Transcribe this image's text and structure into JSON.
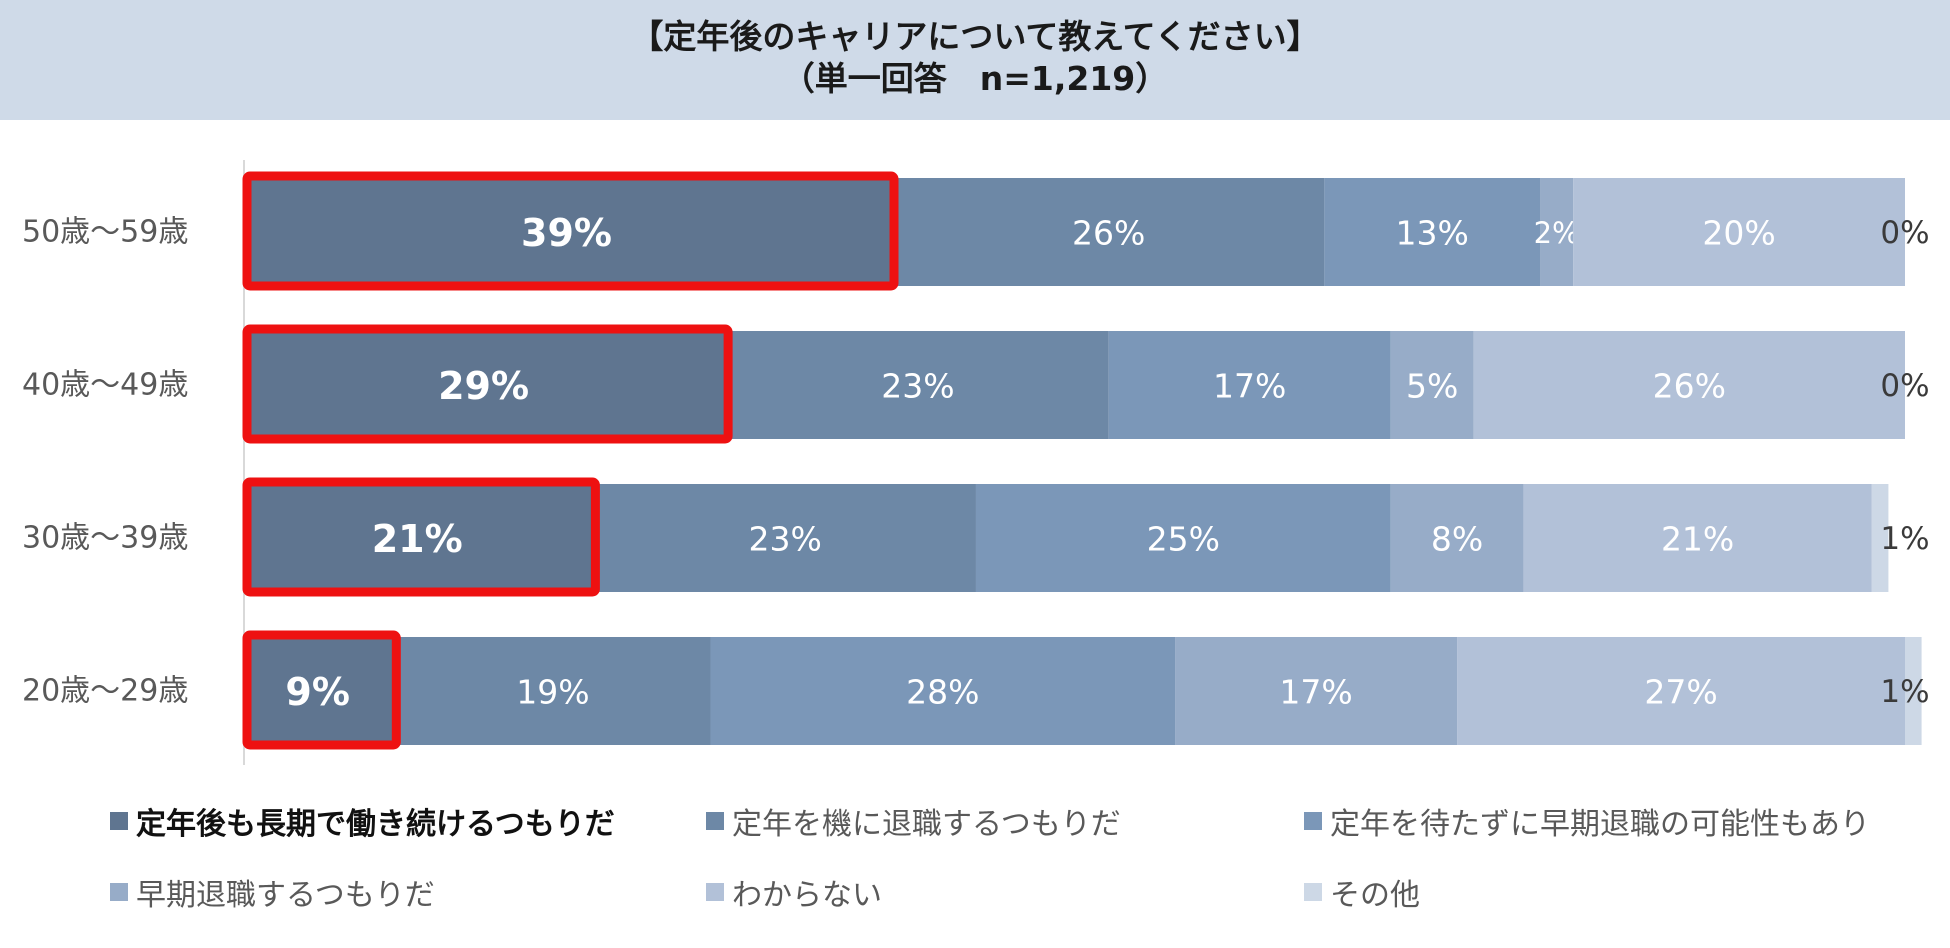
{
  "title": {
    "line1": "【定年後のキャリアについて教えてください】",
    "line2": "（単一回答　n=1,219）"
  },
  "chart_data": {
    "type": "bar",
    "orientation": "horizontal",
    "stacked": true,
    "normalized": true,
    "categories": [
      "50歳～59歳",
      "40歳～49歳",
      "30歳～39歳",
      "20歳～29歳"
    ],
    "series": [
      {
        "name": "定年後も長期で働き続けるつもりだ",
        "values": [
          39,
          29,
          21,
          9
        ],
        "color": "#5f7590",
        "highlight": true
      },
      {
        "name": "定年を機に退職するつもりだ",
        "values": [
          26,
          23,
          23,
          19
        ],
        "color": "#6d88a6"
      },
      {
        "name": "定年を待たずに早期退職の可能性もあり",
        "values": [
          13,
          17,
          25,
          28
        ],
        "color": "#7b97b8"
      },
      {
        "name": "早期退職するつもりだ",
        "values": [
          2,
          5,
          8,
          17
        ],
        "color": "#97acc8"
      },
      {
        "name": "わからない",
        "values": [
          20,
          26,
          21,
          27
        ],
        "color": "#b2c1d8"
      },
      {
        "name": "その他",
        "values": [
          0,
          0,
          1,
          1
        ],
        "color": "#cdd8e6"
      }
    ],
    "value_labels": [
      [
        "39%",
        "26%",
        "13%",
        "2%",
        "20%",
        "0%"
      ],
      [
        "29%",
        "23%",
        "17%",
        "5%",
        "26%",
        "0%"
      ],
      [
        "21%",
        "23%",
        "25%",
        "8%",
        "21%",
        "1%"
      ],
      [
        "9%",
        "19%",
        "28%",
        "17%",
        "27%",
        "1%"
      ]
    ],
    "xlim": [
      0,
      100
    ],
    "legend_position": "bottom",
    "highlight_color": "#ee1111"
  }
}
